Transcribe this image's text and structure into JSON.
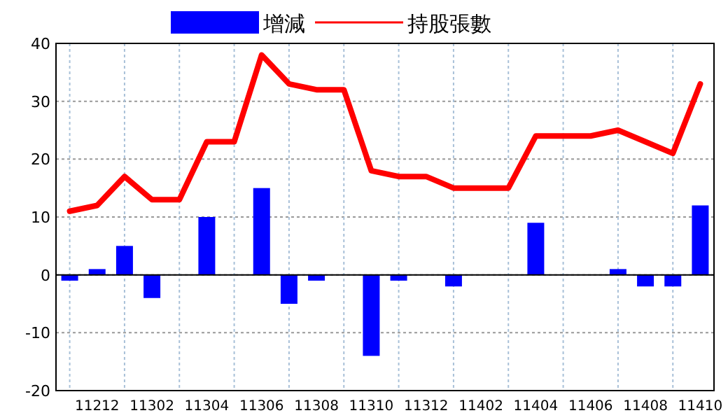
{
  "chart_data": {
    "type": "bar",
    "categories": [
      null,
      "11212",
      null,
      "11302",
      null,
      "11304",
      null,
      "11306",
      null,
      "11308",
      null,
      "11310",
      null,
      "11312",
      null,
      "11402",
      null,
      "11404",
      null,
      "11406",
      null,
      "11408",
      null,
      "11410"
    ],
    "series": [
      {
        "name": "增減",
        "color": "#0000ff",
        "values": [
          -1,
          1,
          5,
          -4,
          0,
          10,
          0,
          15,
          -5,
          -1,
          0,
          -14,
          -1,
          0,
          -2,
          0,
          0,
          9,
          0,
          0,
          1,
          -2,
          -2,
          12
        ]
      },
      {
        "name": "持股張數",
        "type": "line",
        "color": "#ff0000",
        "values": [
          11,
          12,
          17,
          13,
          13,
          23,
          23,
          38,
          33,
          32,
          32,
          18,
          17,
          17,
          15,
          15,
          15,
          24,
          24,
          24,
          25,
          23,
          21,
          33
        ]
      }
    ],
    "ylim": [
      -20,
      40
    ],
    "yticks": [
      -20,
      -10,
      0,
      10,
      20,
      30,
      40
    ],
    "grid": true,
    "legend": "top"
  }
}
